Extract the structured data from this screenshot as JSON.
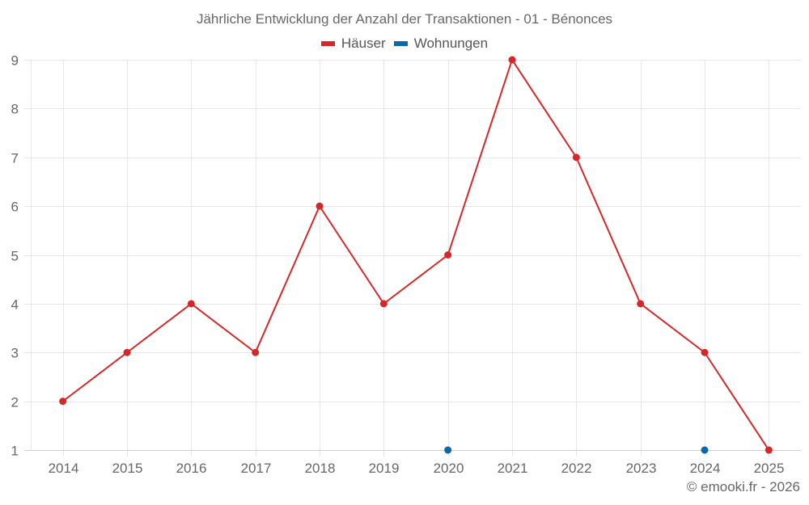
{
  "chart": {
    "title": "Jährliche Entwicklung der Anzahl der Transaktionen - 01 - Bénonces",
    "credit": "© emooki.fr - 2026",
    "legend": [
      {
        "label": "Häuser",
        "color": "#d62728"
      },
      {
        "label": "Wohnungen",
        "color": "#0868a8"
      }
    ]
  },
  "colors": {
    "grid": "#e6e6e6",
    "axis": "#d0d0d0",
    "tick_label": "#666666",
    "houses": "#d62728",
    "apartments": "#0868a8"
  },
  "chart_data": {
    "type": "line",
    "title": "Jährliche Entwicklung der Anzahl der Transaktionen - 01 - Bénonces",
    "xlabel": "",
    "ylabel": "",
    "categories": [
      "2014",
      "2015",
      "2016",
      "2017",
      "2018",
      "2019",
      "2020",
      "2021",
      "2022",
      "2023",
      "2024",
      "2025"
    ],
    "series": [
      {
        "name": "Häuser",
        "color": "#d62728",
        "values": [
          2,
          3,
          4,
          3,
          6,
          4,
          5,
          9,
          7,
          4,
          3,
          1
        ]
      },
      {
        "name": "Wohnungen",
        "color": "#0868a8",
        "values": [
          null,
          null,
          null,
          null,
          null,
          null,
          1,
          null,
          null,
          null,
          1,
          null
        ]
      }
    ],
    "ylim": [
      1,
      9
    ],
    "yticks": [
      1,
      2,
      3,
      4,
      5,
      6,
      7,
      8,
      9
    ],
    "grid": true,
    "legend_position": "top-center",
    "credit": "© emooki.fr - 2026"
  }
}
